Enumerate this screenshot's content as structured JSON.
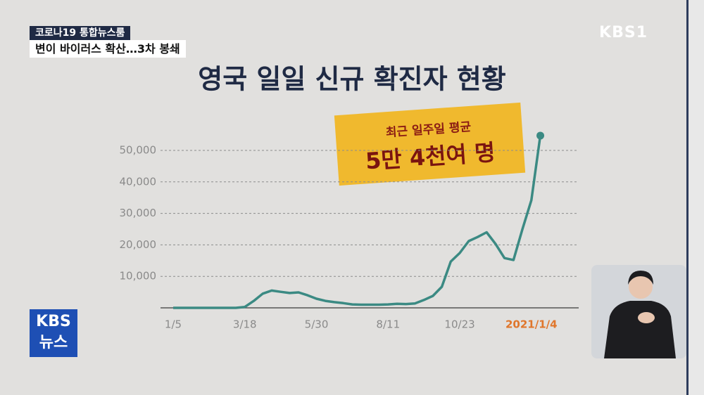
{
  "broadcast": {
    "program": "코로나19 통합뉴스룸",
    "headline": "변이 바이러스 확산…3차 봉쇄",
    "channel_logo": "KBS1",
    "news_logo": [
      "KBS",
      "뉴스"
    ]
  },
  "chart_data": {
    "type": "line",
    "title": "영국 일일 신규 확진자 현황",
    "annotation": [
      "최근 일주일 평균",
      "5만 4천여 명"
    ],
    "categories": [
      "1/5",
      null,
      null,
      null,
      null,
      null,
      null,
      null,
      "3/18",
      null,
      null,
      null,
      null,
      null,
      null,
      null,
      "5/30",
      null,
      null,
      null,
      null,
      null,
      null,
      null,
      "8/11",
      null,
      null,
      null,
      null,
      null,
      null,
      null,
      "10/23",
      null,
      null,
      null,
      null,
      null,
      null,
      null,
      "2021/1/4",
      null
    ],
    "series": [
      {
        "name": "일일 신규 확진자",
        "color": "#3b8a83",
        "values": [
          0,
          0,
          0,
          0,
          0,
          0,
          0,
          0,
          300,
          2200,
          4500,
          5500,
          5100,
          4700,
          4900,
          4000,
          2900,
          2200,
          1800,
          1500,
          1100,
          1000,
          1000,
          1000,
          1100,
          1300,
          1200,
          1400,
          2500,
          3800,
          6700,
          14700,
          17400,
          21200,
          22500,
          24000,
          20300,
          15800,
          15200,
          25000,
          34200,
          54700
        ]
      }
    ],
    "ylim": [
      0,
      55000
    ],
    "yticks": [
      {
        "value": 10000,
        "label": "10,000"
      },
      {
        "value": 20000,
        "label": "20,000"
      },
      {
        "value": 30000,
        "label": "30,000"
      },
      {
        "value": 40000,
        "label": "40,000"
      },
      {
        "value": 50000,
        "label": "50,000"
      }
    ],
    "grid": true
  }
}
